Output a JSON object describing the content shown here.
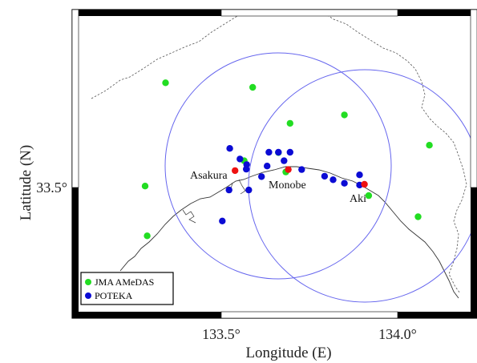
{
  "map": {
    "xlabel": "Longitude (E)",
    "ylabel": "Latitude (N)",
    "x_ticks": [
      {
        "value": 133.5,
        "label": "133.5°"
      },
      {
        "value": 134.0,
        "label": "134.0°"
      }
    ],
    "y_ticks": [
      {
        "value": 33.5,
        "label": "33.5°"
      }
    ],
    "extent": {
      "lon": [
        133.22,
        134.2
      ],
      "lat": [
        33.08,
        33.85
      ]
    },
    "frame_style": "black-and-white alternating border",
    "places": [
      {
        "name": "Asakura",
        "lon": 133.508,
        "lat": 33.55
      },
      {
        "name": "Monobe",
        "lon": 133.686,
        "lat": 33.546
      },
      {
        "name": "Aki",
        "lon": 133.901,
        "lat": 33.496
      }
    ],
    "radar_circles": [
      {
        "center_lon": 133.687,
        "center_lat": 33.555,
        "radius_deg": 0.245
      },
      {
        "center_lon": 133.903,
        "center_lat": 33.508,
        "radius_deg": 0.24
      }
    ],
    "radar_sites": [
      {
        "lon": 133.539,
        "lat": 33.548
      },
      {
        "lon": 133.69,
        "lat": 33.551
      },
      {
        "lon": 133.906,
        "lat": 33.509
      }
    ],
    "legend": {
      "placement": "bottom-left",
      "entries": [
        {
          "label": "JMA AMeDAS",
          "color": "#22dd22"
        },
        {
          "label": "POTEKA",
          "color": "#0b0bd4"
        }
      ]
    },
    "colors": {
      "amedas": "#22dd22",
      "poteka": "#0b0bd4",
      "radar_site": "#ee1111",
      "circle": "#6666ee",
      "coast": "#333333",
      "border": "#555555"
    },
    "amedas_stations": [
      [
        133.342,
        33.797
      ],
      [
        133.589,
        33.784
      ],
      [
        133.695,
        33.682
      ],
      [
        133.849,
        33.706
      ],
      [
        133.662,
        33.599
      ],
      [
        133.565,
        33.576
      ],
      [
        133.683,
        33.544
      ],
      [
        133.284,
        33.504
      ],
      [
        133.918,
        33.477
      ],
      [
        134.09,
        33.62
      ],
      [
        134.058,
        33.417
      ],
      [
        133.29,
        33.363
      ]
    ],
    "poteka_stations": [
      [
        133.524,
        33.611
      ],
      [
        133.553,
        33.581
      ],
      [
        133.572,
        33.565
      ],
      [
        133.635,
        33.6
      ],
      [
        133.662,
        33.6
      ],
      [
        133.695,
        33.6
      ],
      [
        133.678,
        33.576
      ],
      [
        133.63,
        33.561
      ],
      [
        133.571,
        33.552
      ],
      [
        133.614,
        33.531
      ],
      [
        133.728,
        33.551
      ],
      [
        133.522,
        33.493
      ],
      [
        133.578,
        33.493
      ],
      [
        133.793,
        33.532
      ],
      [
        133.817,
        33.522
      ],
      [
        133.849,
        33.512
      ],
      [
        133.892,
        33.536
      ],
      [
        133.892,
        33.507
      ],
      [
        133.503,
        33.405
      ]
    ]
  }
}
